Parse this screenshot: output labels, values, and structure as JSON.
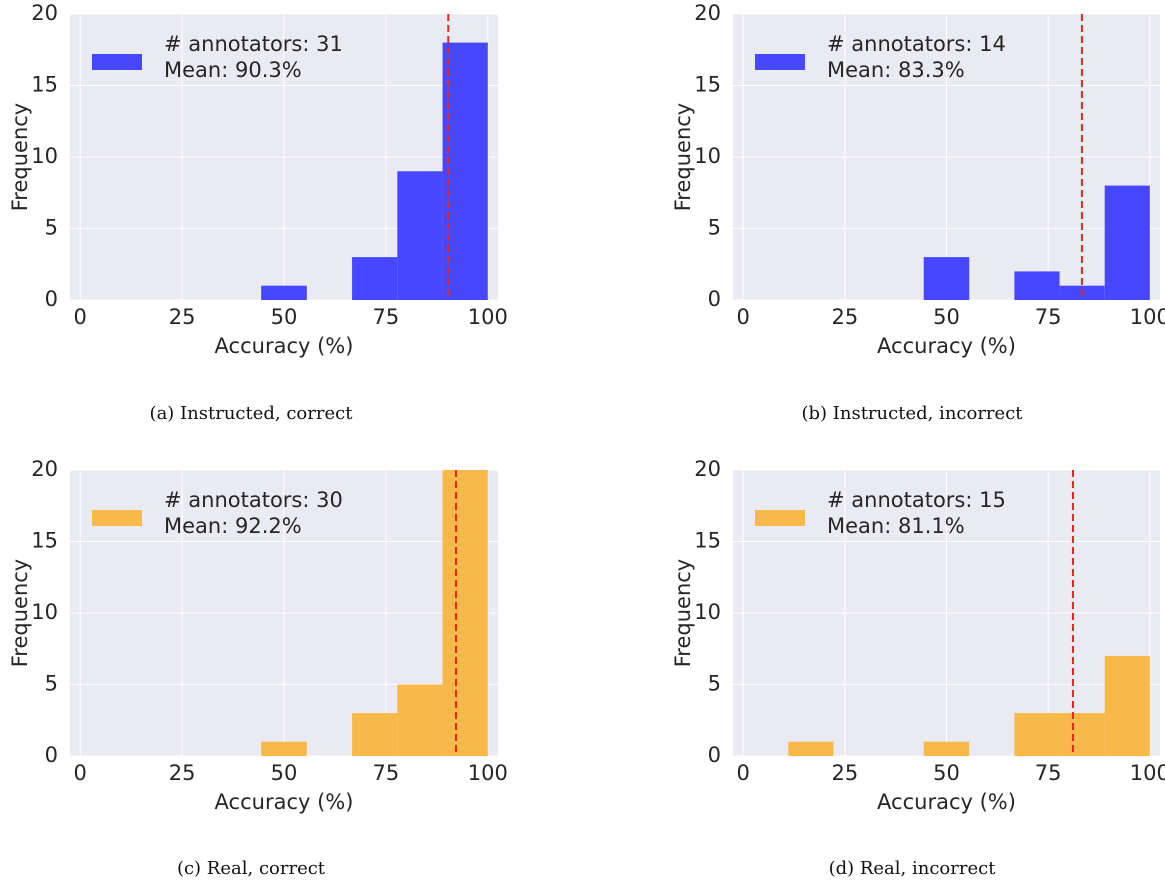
{
  "chart_data": [
    {
      "type": "bar",
      "caption": "(a) Instructed, correct",
      "xlabel": "Accuracy (%)",
      "ylabel": "Frequency",
      "xlim": [
        -2.5,
        102.5
      ],
      "ylim": [
        0,
        20
      ],
      "xticks": [
        0,
        25,
        50,
        75,
        100
      ],
      "yticks": [
        0,
        5,
        10,
        15,
        20
      ],
      "grid": true,
      "bin_edges": [
        44.4,
        55.6,
        66.7,
        77.8,
        88.9,
        100
      ],
      "values": [
        1,
        0,
        3,
        9,
        18
      ],
      "color": "#4747ff",
      "mean_line": 90.3,
      "mean_line_color": "#e8251f",
      "legend": {
        "position": "upper-left",
        "line1": "# annotators: 31",
        "line2": "Mean: 90.3%"
      }
    },
    {
      "type": "bar",
      "caption": "(b) Instructed, incorrect",
      "xlabel": "Accuracy (%)",
      "ylabel": "Frequency",
      "xlim": [
        -2.5,
        102.5
      ],
      "ylim": [
        0,
        20
      ],
      "xticks": [
        0,
        25,
        50,
        75,
        100
      ],
      "yticks": [
        0,
        5,
        10,
        15,
        20
      ],
      "grid": true,
      "bin_edges": [
        44.4,
        55.6,
        66.7,
        77.8,
        88.9,
        100
      ],
      "values": [
        3,
        0,
        2,
        1,
        8
      ],
      "color": "#4747ff",
      "mean_line": 83.3,
      "mean_line_color": "#e8251f",
      "legend": {
        "position": "upper-left",
        "line1": "# annotators: 14",
        "line2": "Mean: 83.3%"
      }
    },
    {
      "type": "bar",
      "caption": "(c) Real, correct",
      "xlabel": "Accuracy (%)",
      "ylabel": "Frequency",
      "xlim": [
        -2.5,
        102.5
      ],
      "ylim": [
        0,
        20
      ],
      "xticks": [
        0,
        25,
        50,
        75,
        100
      ],
      "yticks": [
        0,
        5,
        10,
        15,
        20
      ],
      "grid": true,
      "bin_edges": [
        44.4,
        55.6,
        66.7,
        77.8,
        88.9,
        100
      ],
      "values": [
        1,
        0,
        3,
        5,
        21
      ],
      "color": "#f8b84a",
      "mean_line": 92.2,
      "mean_line_color": "#e8251f",
      "legend": {
        "position": "upper-left",
        "line1": "# annotators: 30",
        "line2": "Mean: 92.2%"
      }
    },
    {
      "type": "bar",
      "caption": "(d) Real, incorrect",
      "xlabel": "Accuracy (%)",
      "ylabel": "Frequency",
      "xlim": [
        -2.5,
        102.5
      ],
      "ylim": [
        0,
        20
      ],
      "xticks": [
        0,
        25,
        50,
        75,
        100
      ],
      "yticks": [
        0,
        5,
        10,
        15,
        20
      ],
      "grid": true,
      "bin_edges": [
        11.1,
        22.2,
        33.3,
        44.4,
        55.6,
        66.7,
        77.8,
        88.9,
        100
      ],
      "values": [
        1,
        0,
        0,
        1,
        0,
        3,
        3,
        7
      ],
      "color": "#f8b84a",
      "mean_line": 81.1,
      "mean_line_color": "#e8251f",
      "legend": {
        "position": "upper-left",
        "line1": "# annotators: 15",
        "line2": "Mean: 81.1%"
      }
    }
  ]
}
